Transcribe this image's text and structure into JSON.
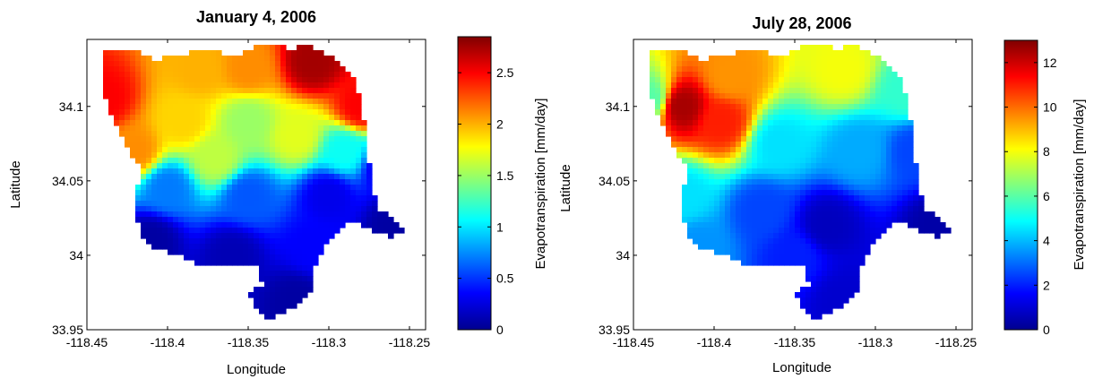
{
  "chart_data": [
    {
      "type": "heatmap",
      "title": "January 4, 2006",
      "xlabel": "Longitude",
      "ylabel": "Latitude",
      "xlim": [
        -118.45,
        -118.24
      ],
      "ylim": [
        33.95,
        34.145
      ],
      "xticks": [
        "-118.45",
        "-118.4",
        "-118.35",
        "-118.3",
        "-118.25"
      ],
      "xtick_values": [
        -118.45,
        -118.4,
        -118.35,
        -118.3,
        -118.25
      ],
      "yticks": [
        "33.95",
        "34",
        "34.05",
        "34.1"
      ],
      "ytick_values": [
        33.95,
        34.0,
        34.05,
        34.1
      ],
      "colorbar": {
        "label": "Evapotranspiration [mm/day]",
        "range": [
          0,
          2.85
        ],
        "colormap": "jet",
        "ticks": [
          "0",
          "0.5",
          "1",
          "1.5",
          "2",
          "2.5"
        ],
        "tick_values": [
          0,
          0.5,
          1,
          1.5,
          2,
          2.5
        ]
      },
      "grid": false,
      "regions": [
        {
          "name": "northwest-peak",
          "lon": -118.44,
          "lat": 34.105,
          "value": 2.5
        },
        {
          "name": "north-ridge-west",
          "lon": -118.38,
          "lat": 34.125,
          "value": 2.0
        },
        {
          "name": "north-ridge-east",
          "lon": -118.31,
          "lat": 34.13,
          "value": 2.75
        },
        {
          "name": "north-center",
          "lon": -118.35,
          "lat": 34.125,
          "value": 2.1
        },
        {
          "name": "northeast-east",
          "lon": -118.28,
          "lat": 34.1,
          "value": 2.5
        },
        {
          "name": "west-slope",
          "lon": -118.42,
          "lat": 34.07,
          "value": 2.1
        },
        {
          "name": "west-center",
          "lon": -118.39,
          "lat": 34.09,
          "value": 1.9
        },
        {
          "name": "center-north",
          "lon": -118.35,
          "lat": 34.09,
          "value": 1.5
        },
        {
          "name": "center-east",
          "lon": -118.32,
          "lat": 34.08,
          "value": 1.7
        },
        {
          "name": "center-south",
          "lon": -118.37,
          "lat": 34.065,
          "value": 1.6
        },
        {
          "name": "east-center",
          "lon": -118.29,
          "lat": 34.07,
          "value": 1.1
        },
        {
          "name": "east-edge",
          "lon": -118.265,
          "lat": 34.06,
          "value": 0.3
        },
        {
          "name": "band-west",
          "lon": -118.4,
          "lat": 34.045,
          "value": 0.7
        },
        {
          "name": "band-center",
          "lon": -118.35,
          "lat": 34.04,
          "value": 0.6
        },
        {
          "name": "band-east",
          "lon": -118.3,
          "lat": 34.04,
          "value": 0.3
        },
        {
          "name": "southwest",
          "lon": -118.41,
          "lat": 34.01,
          "value": 0.1
        },
        {
          "name": "south-center",
          "lon": -118.36,
          "lat": 34.0,
          "value": 0.15
        },
        {
          "name": "south-east",
          "lon": -118.31,
          "lat": 34.005,
          "value": 0.35
        },
        {
          "name": "south-tail",
          "lon": -118.32,
          "lat": 33.97,
          "value": 0.1
        },
        {
          "name": "east-tail",
          "lon": -118.26,
          "lat": 34.02,
          "value": 0.1
        }
      ]
    },
    {
      "type": "heatmap",
      "title": "July 28, 2006",
      "xlabel": "Longitude",
      "ylabel": "Latitude",
      "xlim": [
        -118.45,
        -118.24
      ],
      "ylim": [
        33.95,
        34.145
      ],
      "xticks": [
        "-118.45",
        "-118.4",
        "-118.35",
        "-118.3",
        "-118.25"
      ],
      "xtick_values": [
        -118.45,
        -118.4,
        -118.35,
        -118.3,
        -118.25
      ],
      "yticks": [
        "33.95",
        "34",
        "34.05",
        "34.1"
      ],
      "ytick_values": [
        33.95,
        34.0,
        34.05,
        34.1
      ],
      "colorbar": {
        "label": "Evapotranspiration [mm/day]",
        "range": [
          0,
          13
        ],
        "colormap": "jet",
        "ticks": [
          "0",
          "2",
          "4",
          "6",
          "8",
          "10",
          "12"
        ],
        "tick_values": [
          0,
          2,
          4,
          6,
          8,
          10,
          12
        ]
      },
      "grid": false,
      "regions": [
        {
          "name": "northwest-peak",
          "lon": -118.42,
          "lat": 34.1,
          "value": 12.5
        },
        {
          "name": "northwest-red",
          "lon": -118.395,
          "lat": 34.09,
          "value": 11.0
        },
        {
          "name": "north-orange",
          "lon": -118.39,
          "lat": 34.12,
          "value": 9.5
        },
        {
          "name": "far-west-green",
          "lon": -118.44,
          "lat": 34.105,
          "value": 6.0
        },
        {
          "name": "north-ridge-yellow",
          "lon": -118.32,
          "lat": 34.125,
          "value": 8.0
        },
        {
          "name": "northeast-green",
          "lon": -118.28,
          "lat": 34.11,
          "value": 5.5
        },
        {
          "name": "center-cyan",
          "lon": -118.36,
          "lat": 34.075,
          "value": 4.5
        },
        {
          "name": "center-east",
          "lon": -118.31,
          "lat": 34.07,
          "value": 3.8
        },
        {
          "name": "east-edge",
          "lon": -118.275,
          "lat": 34.07,
          "value": 2.5
        },
        {
          "name": "west-cyan",
          "lon": -118.42,
          "lat": 34.04,
          "value": 4.5
        },
        {
          "name": "center-south",
          "lon": -118.37,
          "lat": 34.03,
          "value": 2.5
        },
        {
          "name": "dark-spot",
          "lon": -118.33,
          "lat": 34.02,
          "value": 0.8
        },
        {
          "name": "south-west",
          "lon": -118.41,
          "lat": 34.005,
          "value": 3.5
        },
        {
          "name": "south-center",
          "lon": -118.35,
          "lat": 34.0,
          "value": 2.0
        },
        {
          "name": "south-tail",
          "lon": -118.32,
          "lat": 33.97,
          "value": 1.0
        },
        {
          "name": "east-tail",
          "lon": -118.26,
          "lat": 34.02,
          "value": 0.5
        }
      ]
    }
  ]
}
